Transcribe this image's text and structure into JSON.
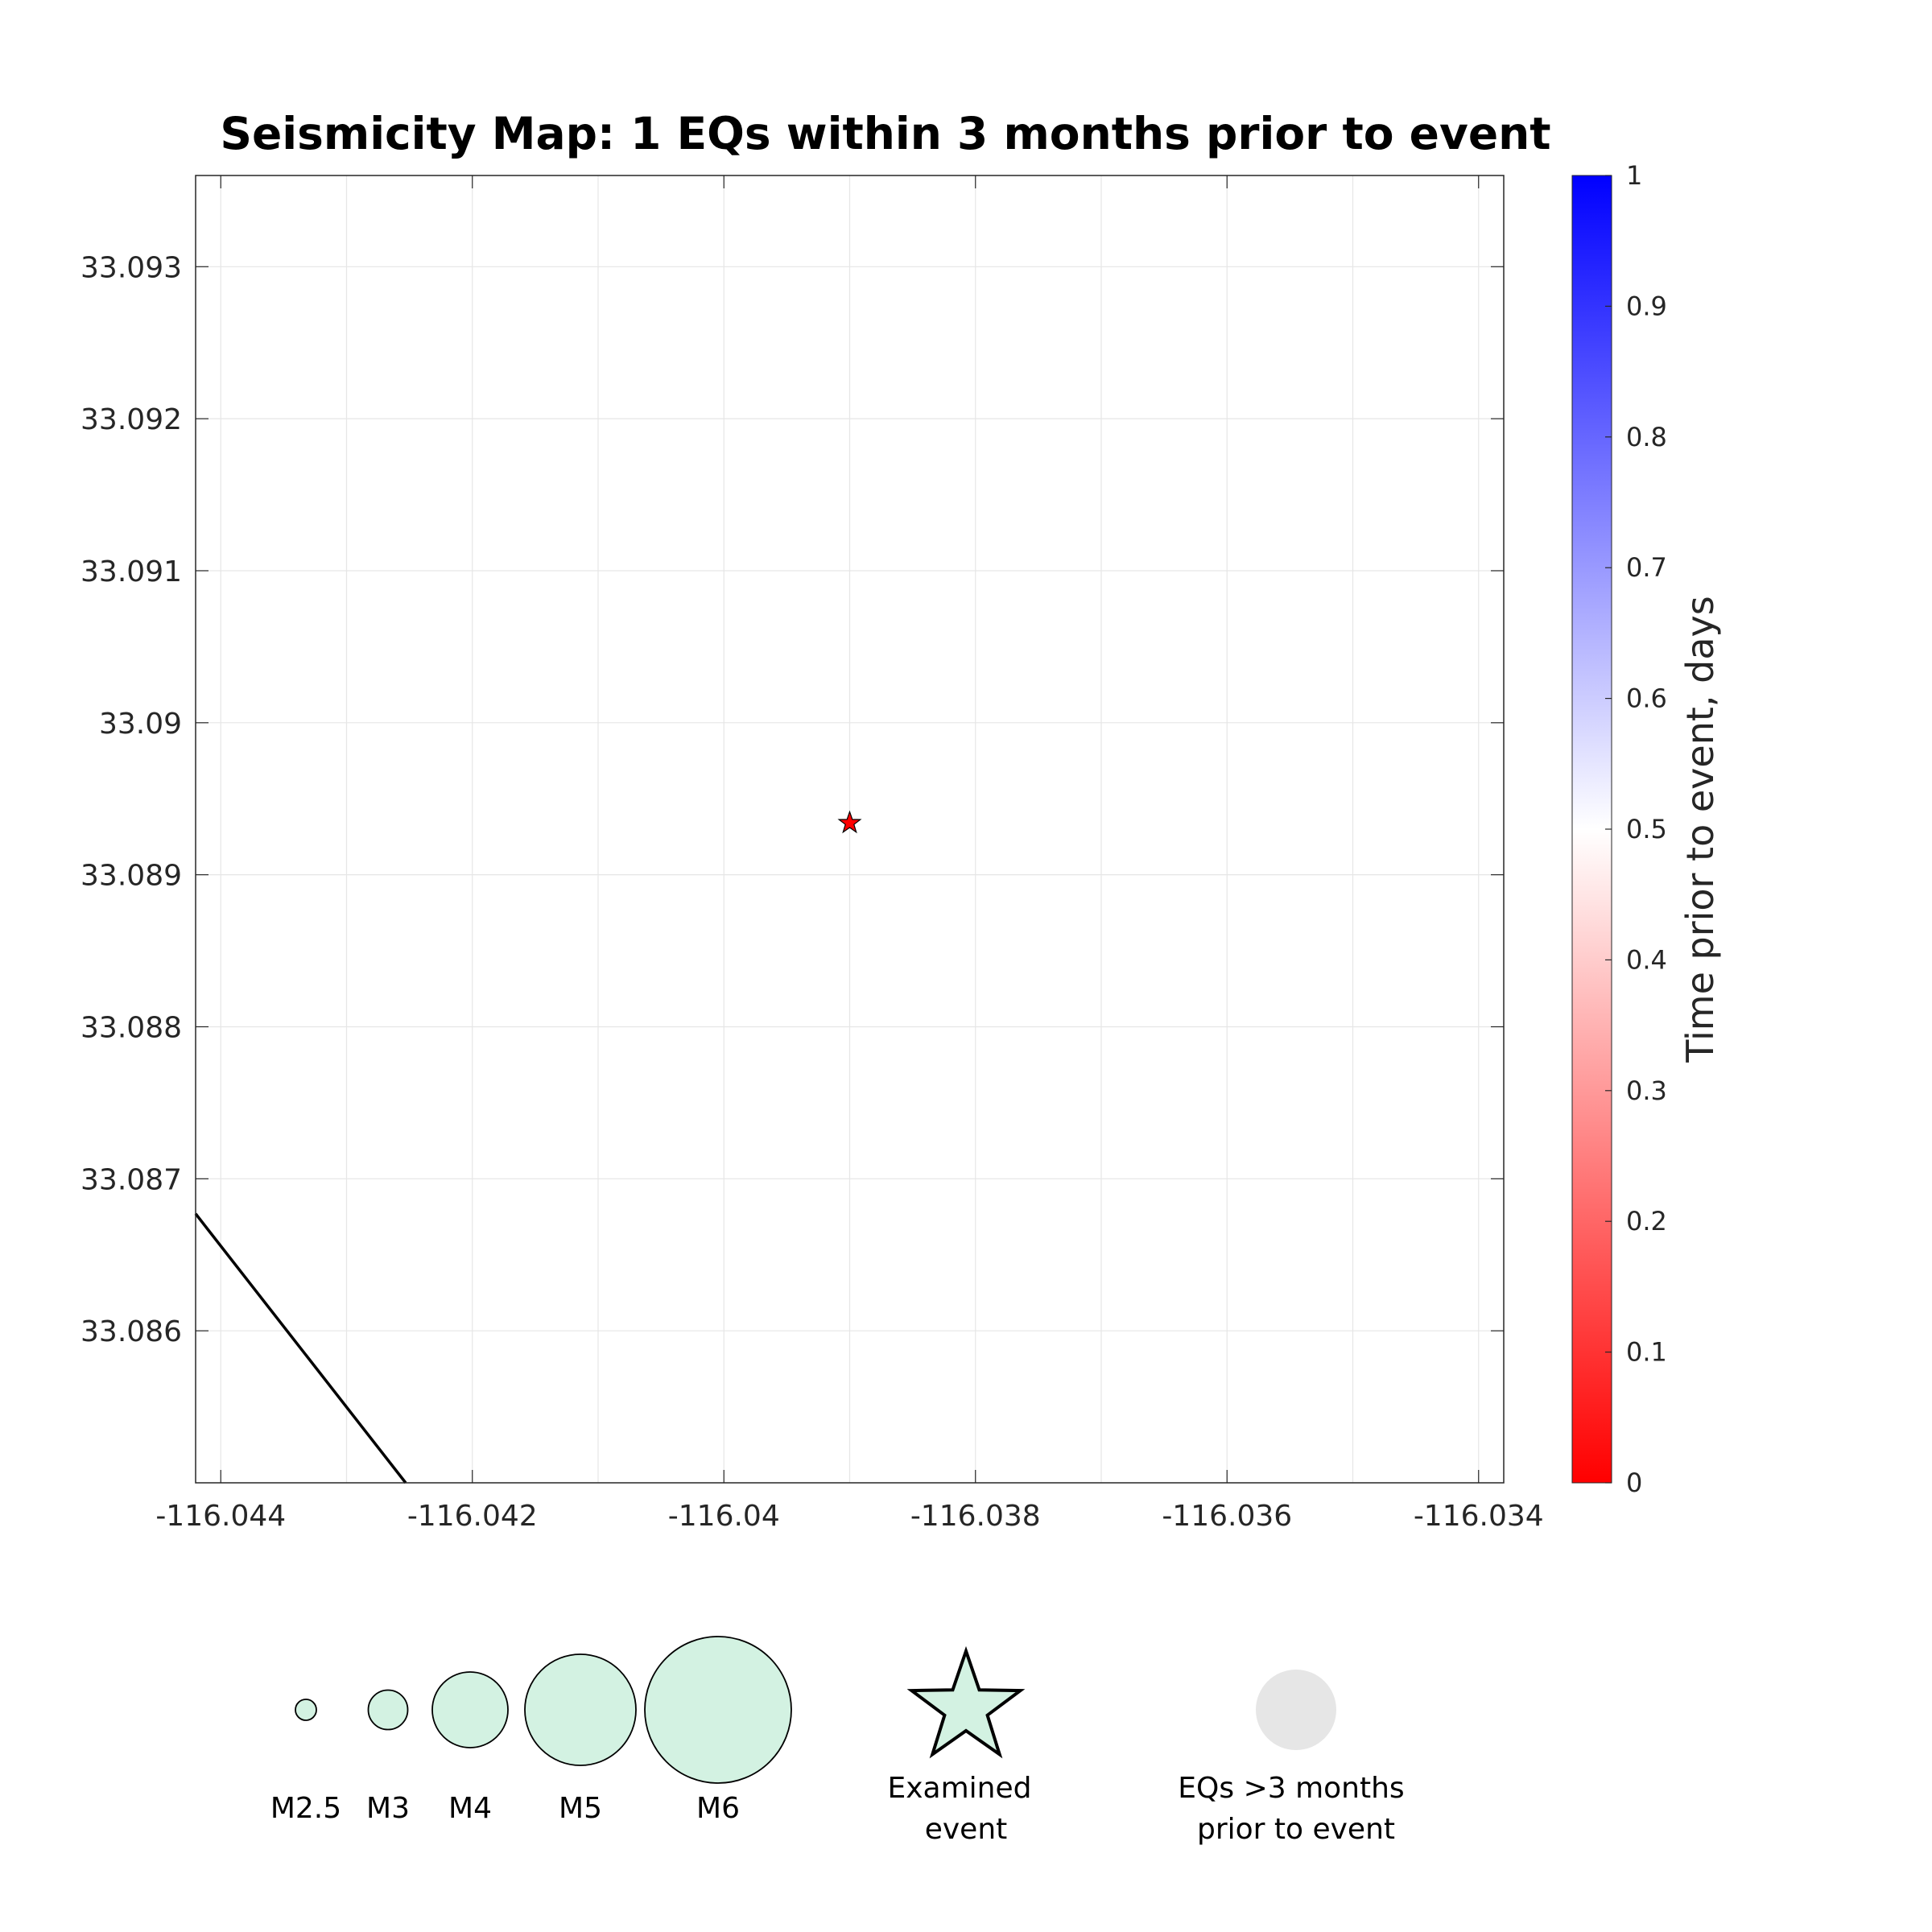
{
  "chart_data": {
    "type": "scatter",
    "title": "Seismicity Map: 1 EQs within 3 months prior to event",
    "xlim": [
      -116.0442,
      -116.0338
    ],
    "ylim": [
      33.085,
      33.0936
    ],
    "x_ticks": [
      -116.044,
      -116.042,
      -116.04,
      -116.038,
      -116.036,
      -116.034
    ],
    "x_tick_labels": [
      "-116.044",
      "-116.042",
      "-116.04",
      "-116.038",
      "-116.036",
      "-116.034"
    ],
    "y_ticks": [
      33.086,
      33.087,
      33.088,
      33.089,
      33.09,
      33.091,
      33.092,
      33.093
    ],
    "y_tick_labels": [
      "33.086",
      "33.087",
      "33.088",
      "33.089",
      "33.09",
      "33.091",
      "33.092",
      "33.093"
    ],
    "grid": true,
    "examined_event": {
      "lon": -116.039,
      "lat": 33.08934,
      "color": "#ff0000"
    },
    "fault_line": {
      "lon": [
        -116.0442,
        -116.04253
      ],
      "lat": [
        33.08677,
        33.085
      ]
    },
    "colorbar": {
      "label": "Time prior to event, days",
      "range": [
        0,
        1
      ],
      "ticks": [
        0,
        0.1,
        0.2,
        0.3,
        0.4,
        0.5,
        0.6,
        0.7,
        0.8,
        0.9,
        1
      ],
      "tick_labels": [
        "0",
        "0.1",
        "0.2",
        "0.3",
        "0.4",
        "0.5",
        "0.6",
        "0.7",
        "0.8",
        "0.9",
        "1"
      ],
      "colors": [
        "#ff0000",
        "#ffffff",
        "#0000ff"
      ]
    },
    "legend": {
      "magnitudes": [
        {
          "label": "M2.5",
          "mag": 2.5
        },
        {
          "label": "M3",
          "mag": 3
        },
        {
          "label": "M4",
          "mag": 4
        },
        {
          "label": "M5",
          "mag": 5
        },
        {
          "label": "M6",
          "mag": 6
        }
      ],
      "marker_fill": "#d3f2e2",
      "examined_label_line1": "Examined",
      "examined_label_line2": "event",
      "old_label_line1": "EQs >3 months",
      "old_label_line2": "prior to event",
      "old_fill": "#e6e6e6"
    }
  }
}
